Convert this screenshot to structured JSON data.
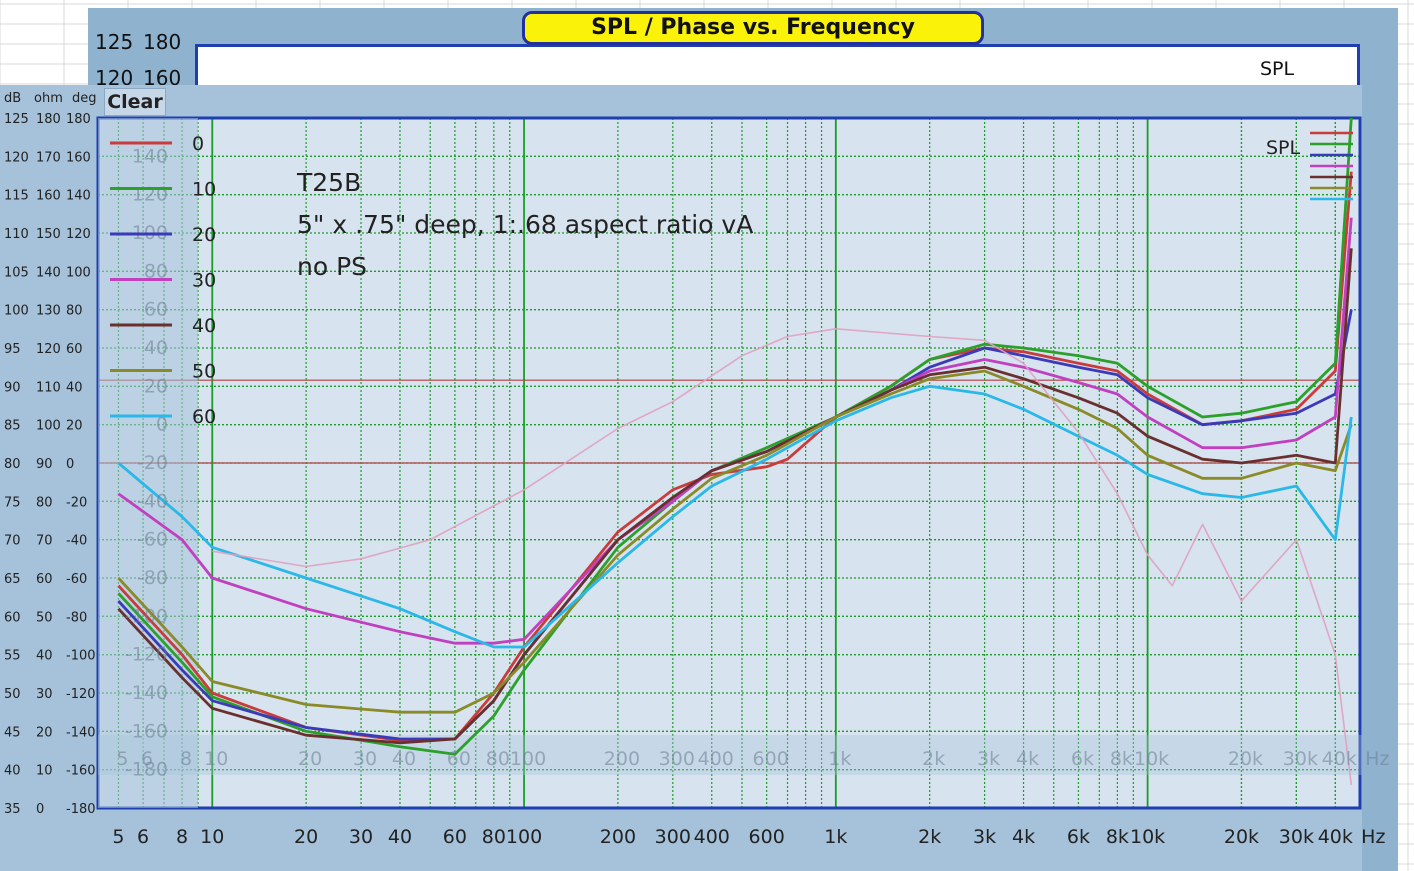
{
  "title": "SPL / Phase vs. Frequency",
  "clear_label": "Clear",
  "units_header": {
    "db": "dB",
    "ohm": "ohm",
    "deg": "deg"
  },
  "back_scale": {
    "db_top": "125",
    "deg_top": "180",
    "db_2": "120",
    "deg_2": "160"
  },
  "legend_label": "SPL",
  "annotation": {
    "line1": "T25B",
    "line2": "5\" x .75\" deep, 1:.68 aspect ratio vA",
    "line3": "no PS"
  },
  "colors": {
    "grid": "#1b9c2a",
    "frame": "#1f3fb0",
    "ref_line": "#b04040",
    "title_bg": "#fbf20a",
    "window": "#a6c2da"
  },
  "chart_data": {
    "type": "line",
    "title": "SPL / Phase vs. Frequency",
    "xlabel": "Hz",
    "ylabel": "dB",
    "xscale": "log",
    "xlim": [
      4.3,
      48000
    ],
    "ylim": [
      35,
      125
    ],
    "x_ticks": [
      "5",
      "6",
      "8",
      "10",
      "20",
      "30",
      "40",
      "60",
      "80",
      "100",
      "200",
      "300",
      "400",
      "600",
      "1k",
      "2k",
      "3k",
      "4k",
      "6k",
      "8k",
      "10k",
      "20k",
      "30k",
      "40k",
      "Hz"
    ],
    "y_ticks_db": [
      "125",
      "120",
      "115",
      "110",
      "105",
      "100",
      "95",
      "90",
      "85",
      "80",
      "75",
      "70",
      "65",
      "60",
      "55",
      "50",
      "45",
      "40",
      "35"
    ],
    "y_ticks_ohm": [
      "180",
      "170",
      "160",
      "150",
      "140",
      "130",
      "120",
      "110",
      "100",
      "90",
      "80",
      "70",
      "60",
      "50",
      "40",
      "30",
      "20",
      "10",
      "0"
    ],
    "y_ticks_deg": [
      "180",
      "160",
      "140",
      "120",
      "100",
      "80",
      "60",
      "40",
      "20",
      "0",
      "-20",
      "-40",
      "-60",
      "-80",
      "-100",
      "-120",
      "-140",
      "-160",
      "-180"
    ],
    "inner_scale_labels": [
      "140",
      "120",
      "100",
      "80",
      "60",
      "40",
      "20",
      "0",
      "-20",
      "-40",
      "-60",
      "-80",
      "-100",
      "-120",
      "-140",
      "-160",
      "-180"
    ],
    "legend_placement": "top-right",
    "grid": true,
    "reference_lines_db": [
      90.8,
      80.0
    ],
    "legend_values": [
      "0",
      "10",
      "20",
      "30",
      "40",
      "50",
      "60"
    ],
    "series": [
      {
        "name": "0",
        "color": "#c83c3c",
        "points": [
          [
            5,
            64
          ],
          [
            8,
            55
          ],
          [
            10,
            50
          ],
          [
            20,
            45.5
          ],
          [
            40,
            43.8
          ],
          [
            60,
            44
          ],
          [
            80,
            50
          ],
          [
            100,
            56
          ],
          [
            200,
            71
          ],
          [
            300,
            76.5
          ],
          [
            400,
            78.5
          ],
          [
            600,
            79.5
          ],
          [
            700,
            80.5
          ],
          [
            1000,
            86
          ],
          [
            1500,
            90
          ],
          [
            2000,
            93.5
          ],
          [
            3000,
            95
          ],
          [
            4000,
            94.5
          ],
          [
            6000,
            93
          ],
          [
            8000,
            92
          ],
          [
            10000,
            89
          ],
          [
            15000,
            85
          ],
          [
            20000,
            85.5
          ],
          [
            30000,
            87
          ],
          [
            40000,
            92
          ],
          [
            45000,
            118
          ]
        ]
      },
      {
        "name": "10",
        "color": "#2ba02b",
        "points": [
          [
            5,
            63
          ],
          [
            8,
            54
          ],
          [
            10,
            49.5
          ],
          [
            20,
            45
          ],
          [
            40,
            43
          ],
          [
            60,
            42
          ],
          [
            80,
            47
          ],
          [
            100,
            53
          ],
          [
            200,
            69
          ],
          [
            300,
            75
          ],
          [
            400,
            79
          ],
          [
            600,
            82
          ],
          [
            1000,
            86
          ],
          [
            1500,
            90
          ],
          [
            2000,
            93.5
          ],
          [
            3000,
            95.5
          ],
          [
            4000,
            95
          ],
          [
            6000,
            94
          ],
          [
            8000,
            93
          ],
          [
            10000,
            90
          ],
          [
            15000,
            86
          ],
          [
            20000,
            86.5
          ],
          [
            30000,
            88
          ],
          [
            40000,
            93
          ],
          [
            45000,
            125
          ]
        ]
      },
      {
        "name": "20",
        "color": "#3a3aba",
        "points": [
          [
            5,
            62
          ],
          [
            8,
            53
          ],
          [
            10,
            49
          ],
          [
            20,
            45.5
          ],
          [
            40,
            44
          ],
          [
            60,
            44
          ],
          [
            80,
            49
          ],
          [
            100,
            55
          ],
          [
            200,
            70
          ],
          [
            300,
            75.5
          ],
          [
            400,
            79
          ],
          [
            600,
            81.5
          ],
          [
            1000,
            86
          ],
          [
            1500,
            89.5
          ],
          [
            2000,
            92.5
          ],
          [
            3000,
            95
          ],
          [
            4000,
            94
          ],
          [
            6000,
            92.5
          ],
          [
            8000,
            91.5
          ],
          [
            10000,
            88.5
          ],
          [
            15000,
            85
          ],
          [
            20000,
            85.5
          ],
          [
            30000,
            86.5
          ],
          [
            40000,
            89
          ],
          [
            45000,
            100
          ]
        ]
      },
      {
        "name": "30",
        "color": "#c040c0",
        "points": [
          [
            5,
            76
          ],
          [
            8,
            70
          ],
          [
            10,
            65
          ],
          [
            20,
            61
          ],
          [
            40,
            58
          ],
          [
            60,
            56.5
          ],
          [
            80,
            56.5
          ],
          [
            100,
            57
          ],
          [
            200,
            70
          ],
          [
            300,
            75
          ],
          [
            400,
            79
          ],
          [
            600,
            81.5
          ],
          [
            1000,
            86
          ],
          [
            1500,
            89.5
          ],
          [
            2000,
            92
          ],
          [
            3000,
            93.5
          ],
          [
            4000,
            92.5
          ],
          [
            6000,
            90.5
          ],
          [
            8000,
            89
          ],
          [
            10000,
            86
          ],
          [
            15000,
            82
          ],
          [
            20000,
            82
          ],
          [
            30000,
            83
          ],
          [
            40000,
            86
          ],
          [
            45000,
            112
          ]
        ]
      },
      {
        "name": "40",
        "color": "#6a3030",
        "points": [
          [
            5,
            61
          ],
          [
            8,
            52
          ],
          [
            10,
            48
          ],
          [
            20,
            44.5
          ],
          [
            40,
            43.5
          ],
          [
            60,
            44
          ],
          [
            80,
            49
          ],
          [
            100,
            55
          ],
          [
            200,
            70
          ],
          [
            300,
            75.5
          ],
          [
            400,
            79
          ],
          [
            600,
            81.5
          ],
          [
            1000,
            86
          ],
          [
            1500,
            89.5
          ],
          [
            2000,
            91.5
          ],
          [
            3000,
            92.5
          ],
          [
            4000,
            91
          ],
          [
            6000,
            88.5
          ],
          [
            8000,
            86.5
          ],
          [
            10000,
            83.5
          ],
          [
            15000,
            80.5
          ],
          [
            20000,
            80
          ],
          [
            30000,
            81
          ],
          [
            40000,
            80
          ],
          [
            45000,
            108
          ]
        ]
      },
      {
        "name": "50",
        "color": "#8a8a28",
        "points": [
          [
            5,
            65
          ],
          [
            8,
            56
          ],
          [
            10,
            51.5
          ],
          [
            20,
            48.5
          ],
          [
            40,
            47.5
          ],
          [
            60,
            47.5
          ],
          [
            80,
            50
          ],
          [
            100,
            54
          ],
          [
            200,
            68
          ],
          [
            300,
            74
          ],
          [
            400,
            78
          ],
          [
            600,
            81
          ],
          [
            1000,
            86
          ],
          [
            1500,
            89
          ],
          [
            2000,
            91
          ],
          [
            3000,
            92
          ],
          [
            4000,
            90
          ],
          [
            6000,
            87
          ],
          [
            8000,
            84.5
          ],
          [
            10000,
            81
          ],
          [
            15000,
            78
          ],
          [
            20000,
            78
          ],
          [
            30000,
            80
          ],
          [
            40000,
            79
          ],
          [
            45000,
            85
          ]
        ]
      },
      {
        "name": "60",
        "color": "#2ab8e8",
        "points": [
          [
            5,
            80
          ],
          [
            8,
            73
          ],
          [
            10,
            69
          ],
          [
            20,
            65
          ],
          [
            40,
            61
          ],
          [
            60,
            58
          ],
          [
            80,
            56
          ],
          [
            100,
            56
          ],
          [
            200,
            67
          ],
          [
            300,
            73
          ],
          [
            400,
            77
          ],
          [
            600,
            80.5
          ],
          [
            1000,
            85.5
          ],
          [
            1500,
            88.5
          ],
          [
            2000,
            90
          ],
          [
            3000,
            89
          ],
          [
            4000,
            87
          ],
          [
            6000,
            83.5
          ],
          [
            8000,
            81
          ],
          [
            10000,
            78.5
          ],
          [
            15000,
            76
          ],
          [
            20000,
            75.5
          ],
          [
            30000,
            77
          ],
          [
            40000,
            70
          ],
          [
            45000,
            86
          ]
        ]
      },
      {
        "name": "phase",
        "color": "#e0a0c0",
        "points": [
          [
            10,
            68.5
          ],
          [
            20,
            66.5
          ],
          [
            30,
            67.5
          ],
          [
            50,
            70
          ],
          [
            100,
            76.5
          ],
          [
            200,
            84.5
          ],
          [
            300,
            88
          ],
          [
            500,
            94
          ],
          [
            700,
            96.5
          ],
          [
            1000,
            97.5
          ],
          [
            2000,
            96.5
          ],
          [
            3000,
            96
          ],
          [
            4000,
            93
          ],
          [
            5000,
            88
          ],
          [
            6000,
            84
          ],
          [
            8000,
            76
          ],
          [
            10000,
            68
          ],
          [
            12000,
            64
          ],
          [
            15000,
            72
          ],
          [
            20000,
            62
          ],
          [
            30000,
            70
          ],
          [
            40000,
            55
          ],
          [
            45000,
            38
          ]
        ]
      }
    ]
  }
}
